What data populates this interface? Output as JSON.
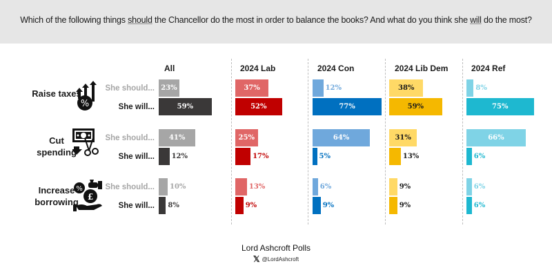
{
  "header": {
    "question_parts": [
      "Which of the following things ",
      "should",
      " the Chancellor do the most in order to balance the books? And what do you think she ",
      "will",
      " do the most?"
    ]
  },
  "footer": {
    "source": "Lord Ashcroft Polls",
    "x_icon": "x-logo-icon",
    "handle": "@LordAshcroft"
  },
  "chart_data": {
    "type": "bar",
    "orientation": "horizontal",
    "title": "Which of the following things should the Chancellor do the most in order to balance the books? And what do you think she will do the most?",
    "groups": [
      "All",
      "2024 Lab",
      "2024 Con",
      "2024 Lib Dem",
      "2024 Ref"
    ],
    "categories": [
      {
        "label": "Raise taxes",
        "icon": "raise-taxes-icon"
      },
      {
        "label": "Cut spending",
        "icon": "cut-spending-icon"
      },
      {
        "label": "Increase borrowing",
        "icon": "increase-borrowing-icon"
      }
    ],
    "series": [
      {
        "name": "She should...",
        "values": {
          "All": [
            23,
            41,
            10
          ],
          "2024 Lab": [
            37,
            25,
            13
          ],
          "2024 Con": [
            12,
            64,
            6
          ],
          "2024 Lib Dem": [
            38,
            31,
            9
          ],
          "2024 Ref": [
            8,
            66,
            6
          ]
        }
      },
      {
        "name": "She will...",
        "values": {
          "All": [
            59,
            12,
            8
          ],
          "2024 Lab": [
            52,
            17,
            9
          ],
          "2024 Con": [
            77,
            5,
            9
          ],
          "2024 Lib Dem": [
            59,
            13,
            9
          ],
          "2024 Ref": [
            75,
            6,
            6
          ]
        }
      }
    ],
    "unit": "%",
    "colors": {
      "All": {
        "should": "#a6a6a6",
        "will": "#3a3838"
      },
      "2024 Lab": {
        "should": "#e06666",
        "will": "#c00000"
      },
      "2024 Con": {
        "should": "#6fa8dc",
        "will": "#0070c0"
      },
      "2024 Lib Dem": {
        "should": "#ffd966",
        "will": "#f5b800"
      },
      "2024 Ref": {
        "should": "#7fd3e6",
        "will": "#1eb8d0"
      }
    },
    "label_colors": {
      "All": {
        "should_in": "#ffffff",
        "should_out": "#a6a6a6",
        "will_in": "#ffffff",
        "will_out": "#3a3838"
      },
      "2024 Lab": {
        "should_in": "#ffffff",
        "should_out": "#e06666",
        "will_in": "#ffffff",
        "will_out": "#c00000"
      },
      "2024 Con": {
        "should_in": "#ffffff",
        "should_out": "#6fa8dc",
        "will_in": "#ffffff",
        "will_out": "#0070c0"
      },
      "2024 Lib Dem": {
        "should_in": "#1a1a1a",
        "should_out": "#1a1a1a",
        "will_in": "#1a1a1a",
        "will_out": "#1a1a1a"
      },
      "2024 Ref": {
        "should_in": "#ffffff",
        "should_out": "#7fd3e6",
        "will_in": "#ffffff",
        "will_out": "#1eb8d0"
      }
    },
    "xlim": [
      0,
      100
    ],
    "legend": "none",
    "grid": false
  }
}
